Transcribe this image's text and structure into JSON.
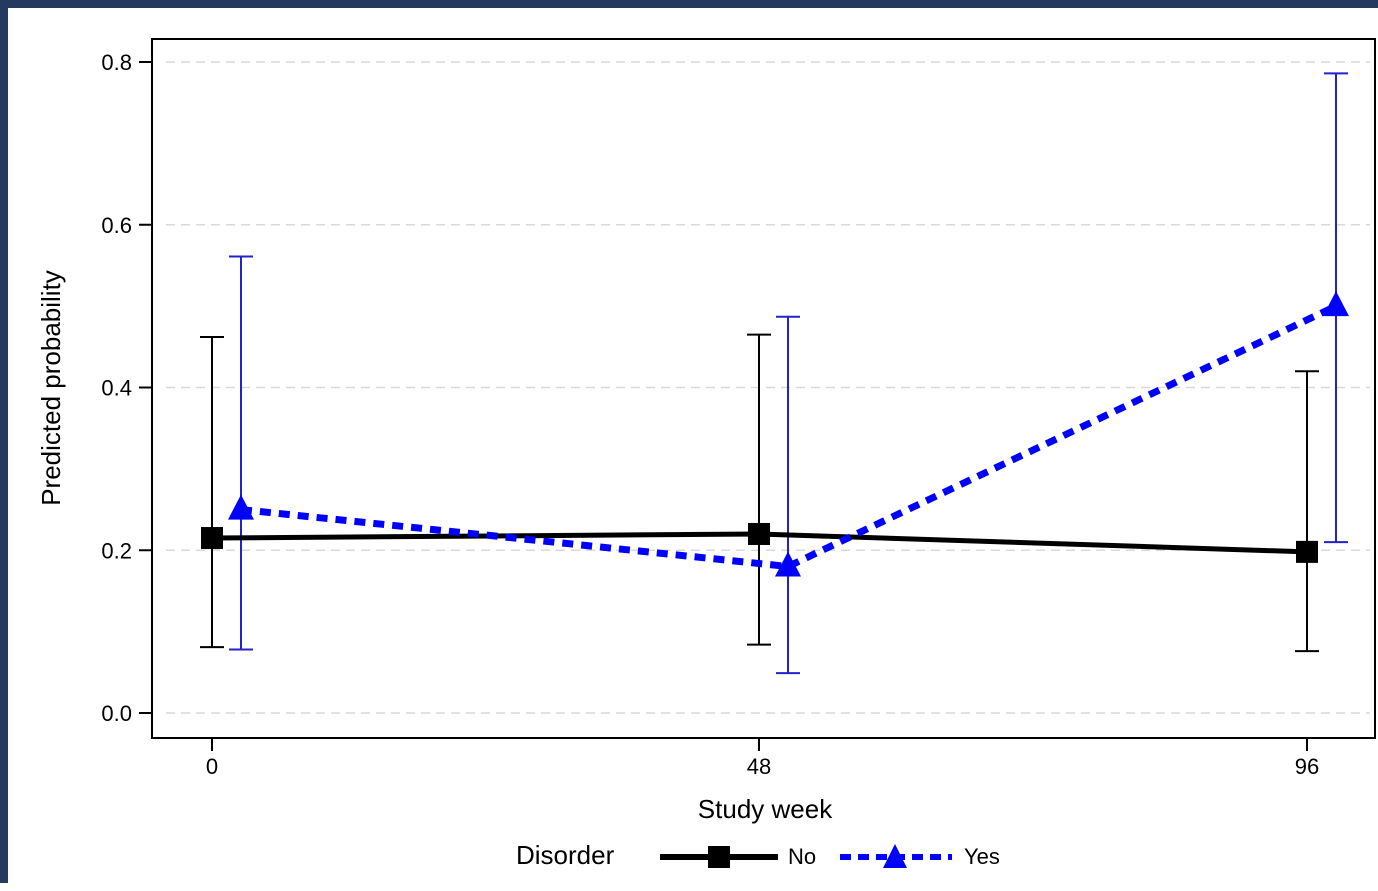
{
  "chart_data": {
    "type": "line",
    "title": "",
    "xlabel": "Study week",
    "ylabel": "Predicted probability",
    "x": [
      0,
      48,
      96
    ],
    "x_ticks": [
      "0",
      "48",
      "96"
    ],
    "y_ticks": [
      "0.0",
      "0.2",
      "0.4",
      "0.6",
      "0.8"
    ],
    "ylim": [
      0,
      0.8
    ],
    "grid": "horizontal dashed",
    "legend_title": "Disorder",
    "legend_position": "bottom",
    "series": [
      {
        "name": "No",
        "color": "#000000",
        "marker": "square",
        "line_style": "solid",
        "values": [
          0.215,
          0.22,
          0.198
        ],
        "ci_lower": [
          0.081,
          0.084,
          0.076
        ],
        "ci_upper": [
          0.462,
          0.465,
          0.42
        ]
      },
      {
        "name": "Yes",
        "color": "#0000ff",
        "errorbar_color": "#2222cc",
        "marker": "triangle",
        "line_style": "dashed",
        "values": [
          0.25,
          0.18,
          0.5
        ],
        "ci_lower": [
          0.078,
          0.049,
          0.21
        ],
        "ci_upper": [
          0.561,
          0.487,
          0.786
        ]
      }
    ]
  }
}
